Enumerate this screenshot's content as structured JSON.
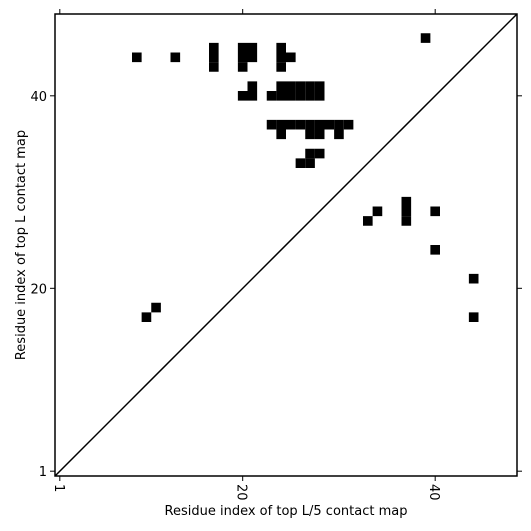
{
  "chart_data": {
    "type": "scatter",
    "marker": "square",
    "color": "#000000",
    "x_label": "Residue index of top L/5 contact map",
    "y_label": "Residue index of top L contact map",
    "xlim": [
      0.5,
      48.5
    ],
    "ylim": [
      0.5,
      48.5
    ],
    "xticks": [
      1,
      20,
      40
    ],
    "yticks": [
      1,
      20,
      40
    ],
    "diagonal": true,
    "x": [
      9,
      13,
      17,
      17,
      17,
      20,
      20,
      20,
      21,
      21,
      24,
      24,
      24,
      25,
      39,
      20,
      21,
      21,
      23,
      24,
      25,
      24,
      25,
      26,
      27,
      28,
      26,
      27,
      28,
      23,
      24,
      25,
      26,
      27,
      28,
      29,
      30,
      31,
      24,
      27,
      28,
      30,
      27,
      28,
      26,
      27,
      33,
      34,
      37,
      37,
      37,
      40,
      40,
      44,
      44,
      11,
      10
    ],
    "y": [
      44,
      44,
      43,
      44,
      45,
      43,
      44,
      45,
      44,
      45,
      43,
      44,
      45,
      44,
      46,
      40,
      40,
      41,
      40,
      40,
      40,
      41,
      41,
      40,
      40,
      40,
      41,
      41,
      41,
      37,
      37,
      37,
      37,
      37,
      37,
      37,
      37,
      37,
      36,
      36,
      36,
      36,
      34,
      34,
      33,
      33,
      27,
      28,
      27,
      28,
      29,
      28,
      24,
      21,
      17,
      18,
      17
    ]
  }
}
